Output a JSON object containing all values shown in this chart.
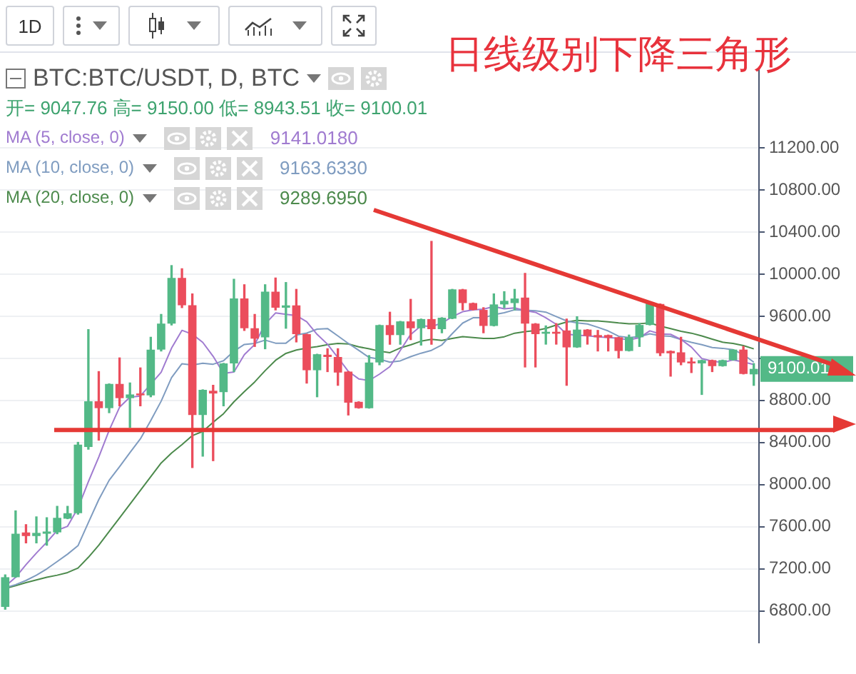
{
  "chart_data": {
    "type": "candlestick",
    "title": "日线级别下降三角形",
    "subtitle": "BTC:BTC/USDT, D, BTC",
    "annotations": [
      "1D",
      "开= 9047.76 高= 9150.00 低= 8943.51 收= 9100.01",
      "9141.0180",
      "9163.6330",
      "9289.6950",
      "9100.01"
    ],
    "ref_lines": [
      {
        "axis": "y",
        "value": 8520,
        "color": "#e53935"
      }
    ],
    "categories": [
      null,
      null,
      null,
      null,
      null,
      null,
      null,
      null,
      null,
      null,
      null,
      null,
      null,
      null,
      null,
      null,
      null,
      null,
      null,
      null,
      null,
      null,
      null,
      null,
      null,
      null,
      null,
      null,
      null,
      null,
      null,
      null,
      null,
      null,
      null,
      null,
      null,
      null,
      null,
      null,
      null,
      null,
      null,
      null,
      null,
      null,
      null,
      null,
      null,
      null,
      null,
      null,
      null,
      null,
      null,
      null,
      null,
      null,
      null,
      null,
      null,
      null,
      null,
      null,
      null,
      null,
      null,
      null,
      null,
      null,
      null,
      null,
      null
    ],
    "ohlc": [
      [
        6839,
        7143,
        6817,
        7121
      ],
      [
        7121,
        7751,
        7121,
        7534
      ],
      [
        7546,
        7620,
        7447,
        7512
      ],
      [
        7512,
        7694,
        7447,
        7542
      ],
      [
        7534,
        7686,
        7425,
        7555
      ],
      [
        7547,
        7794,
        7534,
        7685
      ],
      [
        7677,
        7794,
        7677,
        7729
      ],
      [
        7729,
        8402,
        7720,
        8380
      ],
      [
        8358,
        9473,
        8337,
        8792
      ],
      [
        8792,
        9074,
        8423,
        8727
      ],
      [
        8727,
        8957,
        8684,
        8957
      ],
      [
        8957,
        9204,
        8749,
        8822
      ],
      [
        8822,
        8966,
        8545,
        8857
      ],
      [
        8866,
        9109,
        8749,
        8849
      ],
      [
        8849,
        9400,
        8835,
        9283
      ],
      [
        9283,
        9617,
        9270,
        9530
      ],
      [
        9530,
        10081,
        9517,
        9964
      ],
      [
        9964,
        10051,
        9682,
        9704
      ],
      [
        9704,
        9812,
        8163,
        8662
      ],
      [
        8662,
        8901,
        8271,
        8901
      ],
      [
        8892,
        8944,
        8228,
        8866
      ],
      [
        8879,
        9152,
        8749,
        9152
      ],
      [
        9152,
        9951,
        9074,
        9769
      ],
      [
        9769,
        9899,
        9465,
        9486
      ],
      [
        9486,
        9617,
        9313,
        9387
      ],
      [
        9400,
        9899,
        9291,
        9834
      ],
      [
        9833,
        9963,
        9660,
        9681
      ],
      [
        9681,
        9920,
        9486,
        9703
      ],
      [
        9703,
        9855,
        9356,
        9430
      ],
      [
        9430,
        9430,
        8965,
        9087
      ],
      [
        9087,
        9239,
        8835,
        9239
      ],
      [
        9234,
        9291,
        9074,
        9213
      ],
      [
        9213,
        9291,
        8944,
        9065
      ],
      [
        9074,
        9074,
        8662,
        8779
      ],
      [
        8787,
        8787,
        8727,
        8727
      ],
      [
        8727,
        9226,
        8727,
        9161
      ],
      [
        9161,
        9516,
        9139,
        9516
      ],
      [
        9516,
        9638,
        9334,
        9421
      ],
      [
        9421,
        9551,
        9334,
        9551
      ],
      [
        9551,
        9760,
        9378,
        9486
      ],
      [
        9486,
        9573,
        9326,
        9573
      ],
      [
        9573,
        10311,
        9334,
        9477
      ],
      [
        9477,
        9586,
        9443,
        9586
      ],
      [
        9577,
        9855,
        9577,
        9855
      ],
      [
        9855,
        9855,
        9660,
        9725
      ],
      [
        9725,
        9725,
        9660,
        9660
      ],
      [
        9660,
        9681,
        9443,
        9508
      ],
      [
        9508,
        9812,
        9508,
        9712
      ],
      [
        9712,
        9833,
        9681,
        9746
      ],
      [
        9725,
        9855,
        9660,
        9768
      ],
      [
        9777,
        10007,
        9118,
        9530
      ],
      [
        9530,
        9530,
        9118,
        9430
      ],
      [
        9434,
        9508,
        9335,
        9452
      ],
      [
        9452,
        9530,
        9335,
        9434
      ],
      [
        9465,
        9573,
        8944,
        9304
      ],
      [
        9304,
        9595,
        9304,
        9473
      ],
      [
        9473,
        9473,
        9335,
        9413
      ],
      [
        9421,
        9465,
        9270,
        9400
      ],
      [
        9421,
        9421,
        9270,
        9395
      ],
      [
        9400,
        9400,
        9204,
        9270
      ],
      [
        9270,
        9421,
        9270,
        9400
      ],
      [
        9400,
        9530,
        9313,
        9517
      ],
      [
        9517,
        9725,
        9517,
        9725
      ],
      [
        9717,
        9717,
        9226,
        9248
      ],
      [
        9270,
        9270,
        9031,
        9248
      ],
      [
        9257,
        9400,
        9139,
        9161
      ],
      [
        9170,
        9204,
        9065,
        9152
      ],
      [
        9152,
        9183,
        8857,
        9183
      ],
      [
        9183,
        9183,
        9074,
        9126
      ],
      [
        9126,
        9183,
        9126,
        9183
      ],
      [
        9183,
        9283,
        9183,
        9283
      ],
      [
        9283,
        9313,
        9052,
        9052
      ],
      [
        9047.76,
        9150,
        8943.51,
        9100.01
      ]
    ],
    "colors": [
      "#53b987",
      "#53b987",
      "#eb4d5c",
      "#53b987",
      "#53b987",
      "#53b987",
      "#53b987",
      "#53b987",
      "#53b987",
      "#eb4d5c",
      "#53b987",
      "#eb4d5c",
      "#53b987",
      "#eb4d5c",
      "#53b987",
      "#53b987",
      "#53b987",
      "#eb4d5c",
      "#eb4d5c",
      "#53b987",
      "#eb4d5c",
      "#53b987",
      "#53b987",
      "#eb4d5c",
      "#eb4d5c",
      "#53b987",
      "#eb4d5c",
      "#53b987",
      "#eb4d5c",
      "#eb4d5c",
      "#53b987",
      "#eb4d5c",
      "#eb4d5c",
      "#eb4d5c",
      "#eb4d5c",
      "#53b987",
      "#53b987",
      "#eb4d5c",
      "#53b987",
      "#eb4d5c",
      "#53b987",
      "#eb4d5c",
      "#53b987",
      "#53b987",
      "#eb4d5c",
      "#eb4d5c",
      "#eb4d5c",
      "#53b987",
      "#53b987",
      "#53b987",
      "#eb4d5c",
      "#eb4d5c",
      "#53b987",
      "#eb4d5c",
      "#eb4d5c",
      "#53b987",
      "#eb4d5c",
      "#eb4d5c",
      "#eb4d5c",
      "#eb4d5c",
      "#53b987",
      "#53b987",
      "#53b987",
      "#eb4d5c",
      "#eb4d5c",
      "#eb4d5c",
      "#eb4d5c",
      "#53b987",
      "#eb4d5c",
      "#53b987",
      "#53b987",
      "#eb4d5c",
      "#53b987"
    ],
    "series": [
      {
        "type": "line",
        "name": "MA (5, close, 0)",
        "color": "#a07bd0",
        "values": [
          7034,
          7120,
          7240,
          7350,
          7453,
          7566,
          7605,
          7778,
          8028,
          8263,
          8517,
          8736,
          8831,
          8842,
          8954,
          9068,
          9297,
          9466,
          9429,
          9352,
          9219,
          9057,
          9070,
          9235,
          9332,
          9526,
          9631,
          9618,
          9607,
          9547,
          9428,
          9334,
          9207,
          9077,
          9005,
          8989,
          9050,
          9121,
          9275,
          9427,
          9509,
          9502,
          9535,
          9595,
          9643,
          9661,
          9667,
          9692,
          9670,
          9679,
          9653,
          9637,
          9585,
          9523,
          9430,
          9419,
          9415,
          9405,
          9397,
          9390,
          9376,
          9396,
          9461,
          9432,
          9428,
          9380,
          9307,
          9198,
          9174,
          9161,
          9185,
          9165,
          9141
        ]
      },
      {
        "type": "line",
        "name": "MA (10, close, 0)",
        "color": "#7f9cc0",
        "values": [
          7020,
          7050,
          7090,
          7140,
          7200,
          7270,
          7340,
          7420,
          7640,
          7858,
          8042,
          8171,
          8305,
          8435,
          8609,
          8793,
          9017,
          9149,
          9136,
          9153,
          9144,
          9177,
          9268,
          9332,
          9342,
          9373,
          9344,
          9344,
          9421,
          9440,
          9477,
          9483,
          9413,
          9342,
          9276,
          9209,
          9192,
          9164,
          9176,
          9216,
          9249,
          9276,
          9328,
          9435,
          9535,
          9585,
          9585,
          9614,
          9633,
          9661,
          9657,
          9652,
          9639,
          9597,
          9555,
          9536,
          9526,
          9495,
          9460,
          9410,
          9398,
          9406,
          9433,
          9415,
          9409,
          9378,
          9352,
          9330,
          9303,
          9295,
          9283,
          9236,
          9164
        ]
      },
      {
        "type": "line",
        "name": "MA (20, close, 0)",
        "color": "#4c8a4c",
        "values": [
          7013,
          7040,
          7070,
          7095,
          7121,
          7140,
          7165,
          7208,
          7310,
          7425,
          7555,
          7685,
          7815,
          7946,
          8076,
          8206,
          8300,
          8380,
          8466,
          8506,
          8593,
          8674,
          8787,
          8884,
          8976,
          9083,
          9181,
          9247,
          9279,
          9297,
          9311,
          9330,
          9341,
          9337,
          9309,
          9291,
          9268,
          9254,
          9299,
          9328,
          9363,
          9380,
          9371,
          9389,
          9406,
          9397,
          9389,
          9389,
          9405,
          9439,
          9453,
          9464,
          9484,
          9516,
          9545,
          9561,
          9556,
          9555,
          9547,
          9536,
          9528,
          9529,
          9536,
          9506,
          9482,
          9457,
          9439,
          9413,
          9382,
          9353,
          9341,
          9321,
          9290
        ]
      }
    ],
    "ylim": [
      6500,
      11950
    ],
    "yticks": [
      {
        "value": 6800,
        "label": "6800.00"
      },
      {
        "value": 7200,
        "label": "7200.00"
      },
      {
        "value": 7600,
        "label": "7600.00"
      },
      {
        "value": 8000,
        "label": "8000.00"
      },
      {
        "value": 8400,
        "label": "8400.00"
      },
      {
        "value": 8800,
        "label": "8800.00"
      },
      {
        "value": 9200,
        "label": null
      },
      {
        "value": 9600,
        "label": "9600.00"
      },
      {
        "value": 10000,
        "label": "10000.00"
      },
      {
        "value": 10400,
        "label": "10400.00"
      },
      {
        "value": 10800,
        "label": "10800.00"
      },
      {
        "value": 11200,
        "label": "11200.00"
      }
    ],
    "grid": "y",
    "legend": "top left",
    "tick_labels": "y"
  }
}
